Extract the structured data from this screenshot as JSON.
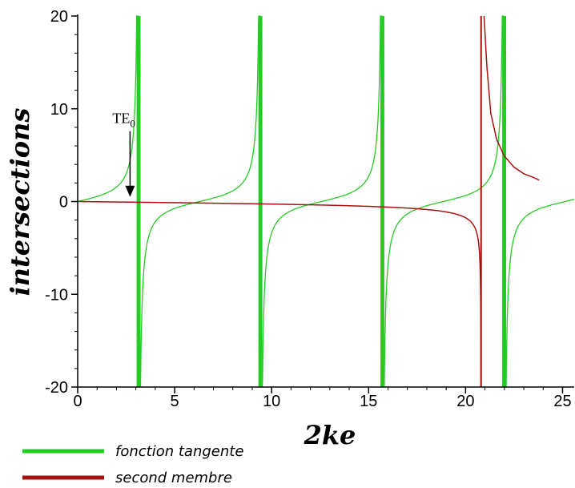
{
  "chart_data": {
    "type": "line",
    "title": "",
    "xlabel": "2ke",
    "ylabel": "intersections",
    "xlim": [
      0,
      25.6
    ],
    "ylim": [
      -20,
      20
    ],
    "xticks": [
      "0",
      "5",
      "10",
      "15",
      "20",
      "25"
    ],
    "yticks": [
      "-20",
      "-10",
      "0",
      "10",
      "20"
    ],
    "grid": false,
    "legend_placement": "bottom-left",
    "series": [
      {
        "name": "fonction tangente",
        "color": "#22cc22",
        "function": "tan(x/2)",
        "asymptotes_x": [
          3.14,
          9.42,
          15.71,
          21.99
        ],
        "branch_starts_x": [
          0,
          3.14,
          9.42,
          15.71,
          21.99
        ],
        "branch_ends_x": [
          3.14,
          9.42,
          15.71,
          21.99,
          25.6
        ]
      },
      {
        "name": "second membre",
        "color": "#aa1111",
        "function": "-x/(2*sqrt(x_c^2 - x^2))",
        "x_c": 20.8,
        "branch_a": {
          "x": [
            0,
            2,
            4,
            6,
            8,
            10,
            12,
            14,
            16,
            17,
            18,
            19,
            19.5,
            20,
            20.2,
            20.4
          ],
          "y": [
            0,
            -0.05,
            -0.1,
            -0.15,
            -0.21,
            -0.27,
            -0.35,
            -0.46,
            -0.62,
            -0.74,
            -0.91,
            -1.16,
            -1.38,
            -1.76,
            -2.07,
            -2.6
          ]
        },
        "branch_b": {
          "x": [
            20.95,
            21.1,
            21.3,
            21.6,
            22,
            22.5,
            23,
            23.5,
            23.8
          ],
          "y": [
            20,
            14.5,
            9.5,
            6.7,
            4.9,
            3.7,
            3.0,
            2.6,
            2.3
          ]
        }
      }
    ],
    "annotations": [
      {
        "text": "TE",
        "subscript": "0",
        "arrow_to_x": 2.7,
        "arrow_to_y": 0.5
      }
    ]
  }
}
